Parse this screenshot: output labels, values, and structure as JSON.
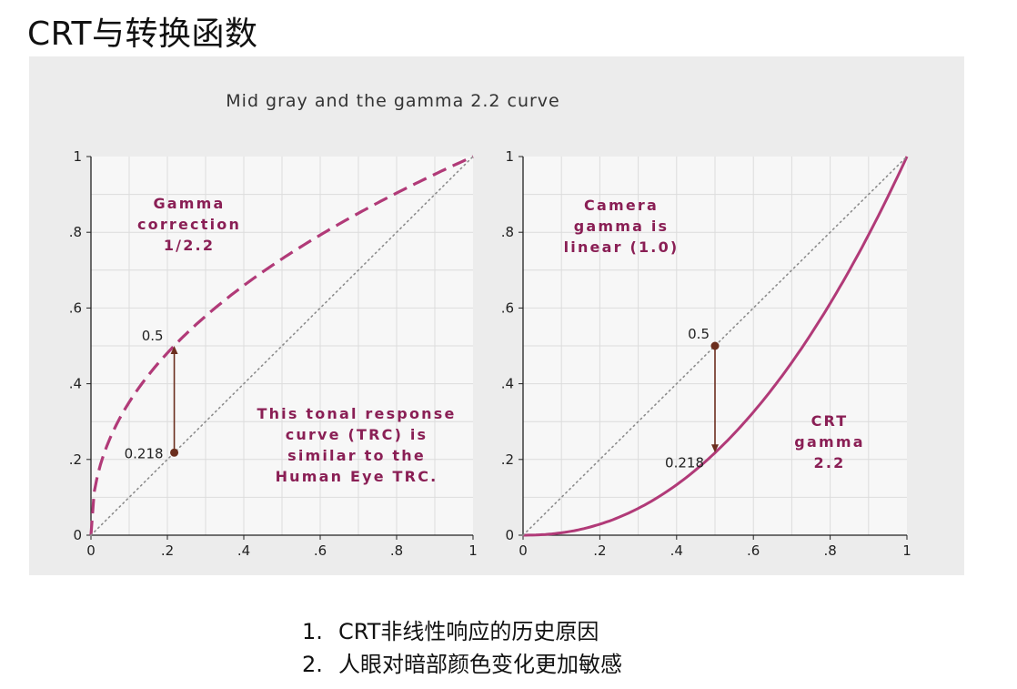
{
  "slide": {
    "title": "CRT与转换函数",
    "notes": [
      {
        "num": "1.",
        "text": "CRT非线性响应的历史原因"
      },
      {
        "num": "2.",
        "text": "人眼对暗部颜色变化更加敏感"
      }
    ]
  },
  "colors": {
    "curve": "#b13a78",
    "annotation_text": "#8a1f55",
    "marker": "#6b2e1e",
    "grid": "#dcdcdc",
    "diagonal": "#8c8c8c",
    "figure_bg": "#ececec",
    "plot_bg": "#f7f7f7"
  },
  "chart_data": [
    {
      "type": "line",
      "title": "Mid gray and the gamma 2.2 curve",
      "panel": "left",
      "xlim": [
        0,
        1
      ],
      "ylim": [
        0,
        1
      ],
      "x_ticks": [
        "0",
        ".2",
        ".4",
        ".6",
        ".8",
        "1"
      ],
      "y_ticks": [
        "0",
        ".2",
        ".4",
        ".6",
        ".8",
        "1"
      ],
      "grid": true,
      "series": [
        {
          "style": "dashed",
          "gamma": 0.4545,
          "x": [
            0,
            0.05,
            0.1,
            0.15,
            0.2,
            0.218,
            0.3,
            0.4,
            0.5,
            0.6,
            0.7,
            0.8,
            0.9,
            1.0
          ],
          "y": [
            0,
            0.256,
            0.351,
            0.422,
            0.481,
            0.5,
            0.578,
            0.659,
            0.73,
            0.793,
            0.85,
            0.904,
            0.953,
            1.0
          ]
        },
        {
          "style": "dotted",
          "x": [
            0,
            1
          ],
          "y": [
            0,
            1
          ]
        }
      ],
      "marker": {
        "x": 0.218,
        "y_from": 0.218,
        "y_to": 0.5,
        "label_from": "0.218",
        "label_to": "0.5"
      },
      "annotations": [
        {
          "lines": [
            "Gamma",
            "correction",
            "1/2.2"
          ]
        },
        {
          "lines": [
            "This tonal response",
            "curve (TRC) is",
            "similar to the",
            "Human Eye TRC."
          ]
        }
      ]
    },
    {
      "type": "line",
      "panel": "right",
      "xlim": [
        0,
        1
      ],
      "ylim": [
        0,
        1
      ],
      "x_ticks": [
        "0",
        ".2",
        ".4",
        ".6",
        ".8",
        "1"
      ],
      "y_ticks": [
        "0",
        ".2",
        ".4",
        ".6",
        ".8",
        "1"
      ],
      "grid": true,
      "series": [
        {
          "style": "solid",
          "gamma": 2.2,
          "x": [
            0,
            0.1,
            0.2,
            0.3,
            0.4,
            0.5,
            0.6,
            0.7,
            0.8,
            0.9,
            1.0
          ],
          "y": [
            0,
            0.006,
            0.029,
            0.071,
            0.133,
            0.218,
            0.325,
            0.456,
            0.612,
            0.793,
            1.0
          ]
        },
        {
          "style": "dotted",
          "x": [
            0,
            1
          ],
          "y": [
            0,
            1
          ]
        }
      ],
      "marker": {
        "x": 0.5,
        "y_from": 0.5,
        "y_to": 0.218,
        "label_from": "0.5",
        "label_to": "0.218"
      },
      "annotations": [
        {
          "lines": [
            "Camera",
            "gamma is",
            "linear (1.0)"
          ]
        },
        {
          "lines": [
            "CRT",
            "gamma",
            "2.2"
          ]
        }
      ]
    }
  ]
}
